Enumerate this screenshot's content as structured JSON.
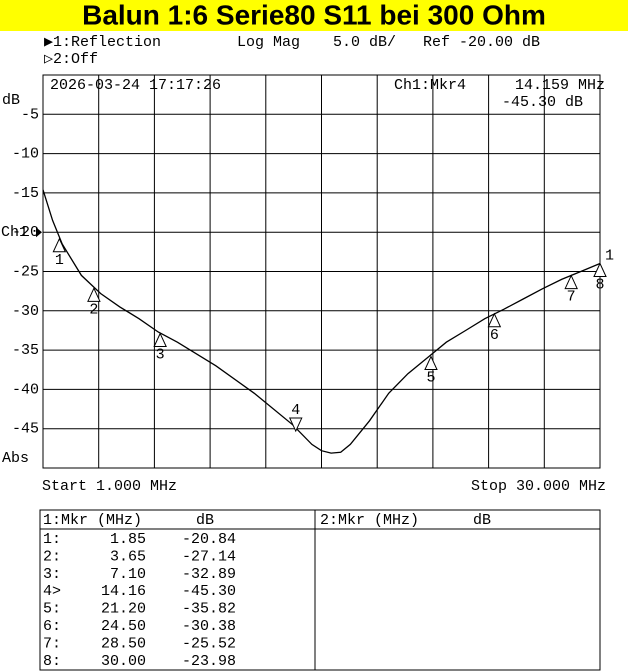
{
  "chart_data": {
    "type": "line",
    "title": "Balun 1:6  Serie80  S11 bei 300 Ohm",
    "header": {
      "channel1": "▶1:Reflection",
      "format": "Log Mag",
      "scale": "5.0 dB/",
      "ref": "Ref -20.00 dB",
      "channel2": "▷2:Off"
    },
    "timestamp": "2026-03-24  17:17:26",
    "readout": {
      "label": "Ch1:Mkr4",
      "freq": "14.159 MHz",
      "value": "-45.30 dB"
    },
    "y_unit": "dB",
    "y_mode": "Abs",
    "ref_label": "Ch1",
    "ref_value": -20,
    "start_label": "Start 1.000 MHz",
    "stop_label": "Stop 30.000 MHz",
    "trace_label": "1",
    "xlim": [
      1,
      30
    ],
    "ylim": [
      -50,
      0
    ],
    "yticks": [
      -5,
      -10,
      -15,
      -20,
      -25,
      -30,
      -35,
      -40,
      -45
    ],
    "grid": true,
    "color": "#000000",
    "x": [
      1,
      1.5,
      2,
      3,
      4,
      5,
      6,
      7,
      8,
      10,
      12,
      14,
      15,
      15.5,
      16,
      16.5,
      17,
      18,
      19,
      20,
      21,
      22,
      23,
      24,
      25,
      26,
      27,
      28,
      29,
      30
    ],
    "values": [
      -14.6,
      -18.5,
      -21.5,
      -25.5,
      -27.8,
      -29.5,
      -31,
      -32.7,
      -34,
      -37,
      -40.5,
      -44.5,
      -47,
      -47.8,
      -48.1,
      -48,
      -47,
      -44,
      -40.5,
      -38,
      -36,
      -34,
      -32.5,
      -31,
      -29.8,
      -28.5,
      -27.2,
      -26,
      -25,
      -23.98
    ],
    "markers": {
      "names": [
        "1",
        "2",
        "3",
        "4",
        "5",
        "6",
        "7",
        "8"
      ],
      "active": 3,
      "row_labels": [
        "1:",
        "2:",
        "3:",
        "4>",
        "5:",
        "6:",
        "7:",
        "8:"
      ],
      "x": [
        1.85,
        3.65,
        7.1,
        14.16,
        21.2,
        24.5,
        28.5,
        30
      ],
      "x_labels": [
        "1.85",
        "3.65",
        "7.10",
        "14.16",
        "21.20",
        "24.50",
        "28.50",
        "30.00"
      ],
      "values": [
        -20.84,
        -27.14,
        -32.89,
        -45.3,
        -35.82,
        -30.38,
        -25.52,
        -23.98
      ],
      "value_labels": [
        "-20.84",
        "-27.14",
        "-32.89",
        "-45.30",
        "-35.82",
        "-30.38",
        "-25.52",
        "-23.98"
      ]
    },
    "table": {
      "ch1_header": "1:Mkr (MHz)",
      "ch1_unit": "dB",
      "ch2_header": "2:Mkr (MHz)",
      "ch2_unit": "dB"
    }
  }
}
